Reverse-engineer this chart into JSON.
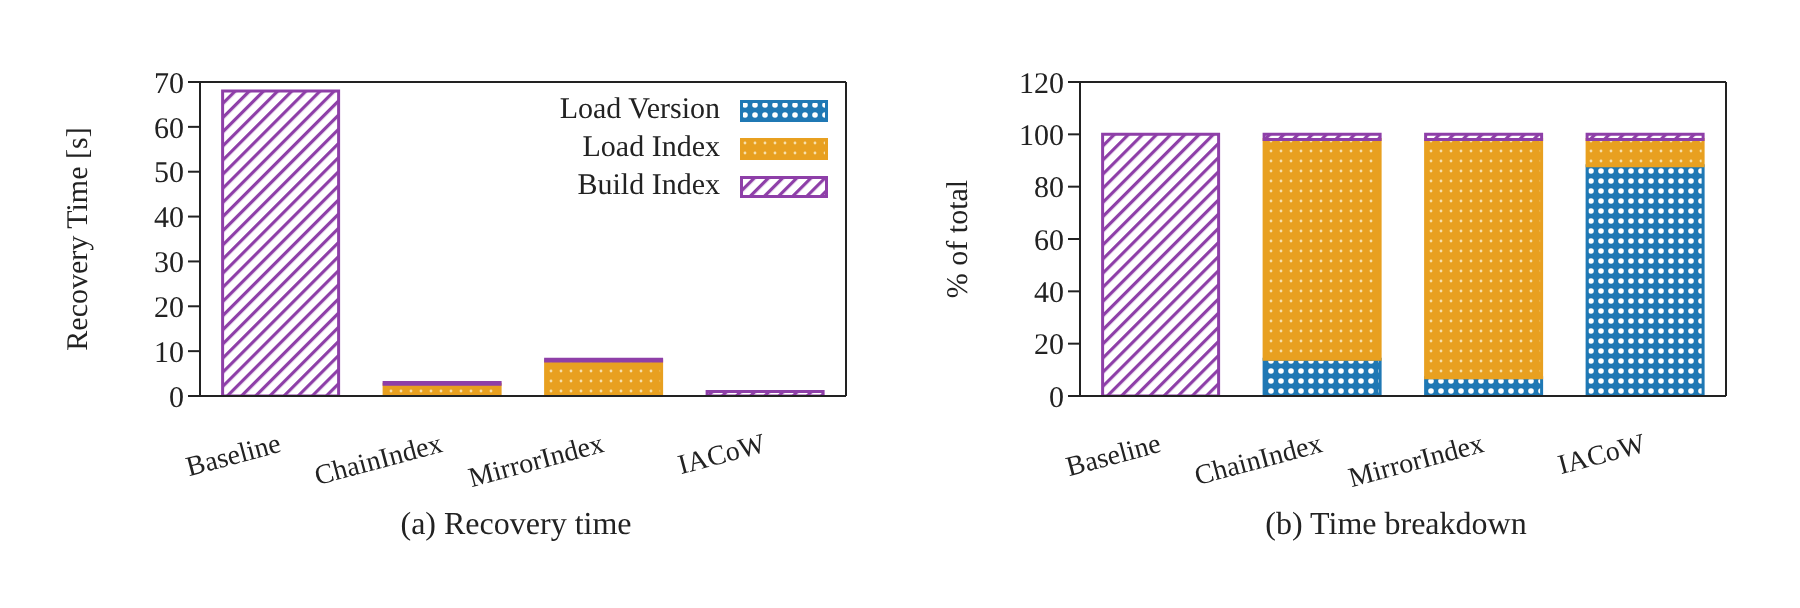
{
  "chart_data": [
    {
      "type": "bar",
      "title": "(a)  Recovery time",
      "ylabel": "Recovery Time [s]",
      "categories": [
        "Baseline",
        "ChainIndex",
        "MirrorIndex",
        "IACoW"
      ],
      "stacked": true,
      "series": [
        {
          "name": "Load Version",
          "color": "#1f78b4",
          "values": [
            0,
            null,
            null,
            null
          ]
        },
        {
          "name": "Load Index",
          "color": "#e8a020",
          "values": [
            0,
            2.6,
            7.8,
            null
          ]
        },
        {
          "name": "Build Index",
          "color": "#8e3fa8",
          "values": [
            68,
            0.4,
            0.4,
            1
          ]
        }
      ],
      "ylim": [
        0,
        70
      ],
      "yticks": [
        0,
        10,
        20,
        30,
        40,
        50,
        60,
        70
      ],
      "grid": false,
      "legend": "top right"
    },
    {
      "type": "bar",
      "title": "(b)  Time breakdown",
      "ylabel": "% of total",
      "categories": [
        "Baseline",
        "ChainIndex",
        "MirrorIndex",
        "IACoW"
      ],
      "stacked": true,
      "series": [
        {
          "color": "#1f78b4",
          "values": [
            0,
            14,
            7,
            88
          ]
        },
        {
          "color": "#e8a020",
          "values": [
            0,
            84,
            91,
            10
          ]
        },
        {
          "color": "#8e3fa8",
          "values": [
            100,
            2,
            2,
            2
          ]
        }
      ],
      "ylim": [
        0,
        120
      ],
      "yticks": [
        0,
        20,
        40,
        60,
        80,
        100,
        120
      ],
      "grid": false,
      "legend": false
    }
  ]
}
